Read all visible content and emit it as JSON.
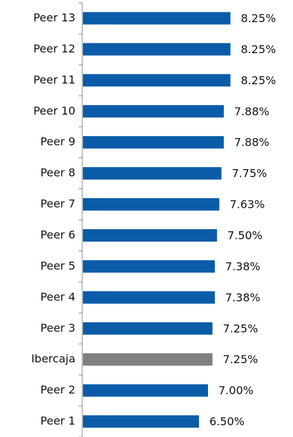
{
  "chart_data": {
    "type": "bar",
    "orientation": "horizontal",
    "categories": [
      "Peer 13",
      "Peer 12",
      "Peer 11",
      "Peer 10",
      "Peer 9",
      "Peer 8",
      "Peer 7",
      "Peer 6",
      "Peer 5",
      "Peer 4",
      "Peer 3",
      "Ibercaja",
      "Peer 2",
      "Peer 1"
    ],
    "values": [
      8.25,
      8.25,
      8.25,
      7.88,
      7.88,
      7.75,
      7.63,
      7.5,
      7.38,
      7.38,
      7.25,
      7.25,
      7.0,
      6.5
    ],
    "value_labels": [
      "8.25%",
      "8.25%",
      "8.25%",
      "7.88%",
      "7.88%",
      "7.75%",
      "7.63%",
      "7.50%",
      "7.38%",
      "7.38%",
      "7.25%",
      "7.25%",
      "7.00%",
      "6.50%"
    ],
    "colors": [
      "#0b5ca8",
      "#0b5ca8",
      "#0b5ca8",
      "#0b5ca8",
      "#0b5ca8",
      "#0b5ca8",
      "#0b5ca8",
      "#0b5ca8",
      "#0b5ca8",
      "#0b5ca8",
      "#0b5ca8",
      "#808080",
      "#0b5ca8",
      "#0b5ca8"
    ]
  }
}
